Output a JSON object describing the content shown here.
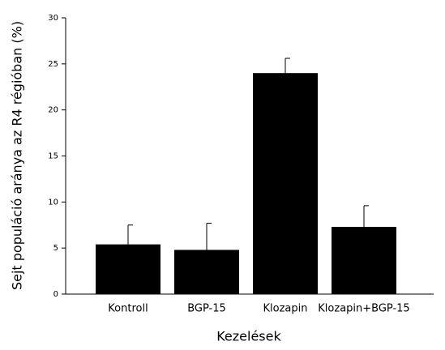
{
  "chart_data": {
    "type": "bar",
    "x_label": "Kezelések",
    "y_label": "Sejt populáció aránya az R4 régióban (%)",
    "categories": [
      "Kontroll",
      "BGP-15",
      "Klozapin",
      "Klozapin+BGP-15"
    ],
    "values": [
      5.4,
      4.8,
      24,
      7.3
    ],
    "errors": [
      2.1,
      2.9,
      1.6,
      2.3
    ],
    "color": "#000000",
    "ylim": [
      0,
      30
    ],
    "yticks": [
      0,
      5,
      10,
      15,
      20,
      25,
      30
    ],
    "grid": false
  }
}
